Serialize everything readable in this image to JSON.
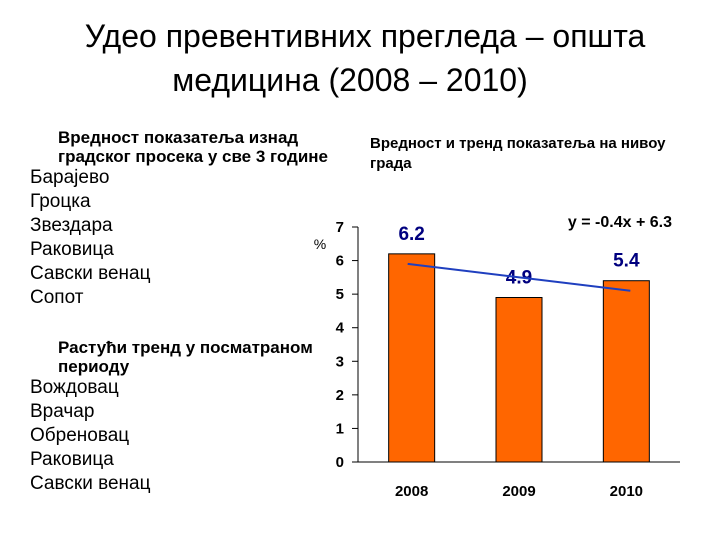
{
  "title": {
    "line1": "Удео превентивних прегледа – општа",
    "line2": "медицина (2008 – 2010)"
  },
  "left_panel": {
    "group1_heading": "Вредност показатеља изнад градског просека у све 3 године",
    "group1_items": [
      "Барајево",
      "Гроцка",
      "Звездара",
      "Раковица",
      "Савски венац",
      "Сопот"
    ],
    "group2_heading": "Растући тренд у посматраном периоду",
    "group2_items": [
      "Вождовац",
      "Врачар",
      "Обреновац",
      "Раковица",
      "Савски венац"
    ]
  },
  "right_heading": "Вредност и тренд показатеља на нивоу града",
  "chart_data": {
    "type": "bar",
    "categories": [
      "2008",
      "2009",
      "2010"
    ],
    "values": [
      6.2,
      4.9,
      5.4
    ],
    "data_labels": [
      "6.2",
      "4.9",
      "5.4"
    ],
    "ylim": [
      0,
      7
    ],
    "yticks": [
      "0",
      "1",
      "2",
      "3",
      "4",
      "5",
      "6",
      "7"
    ],
    "ylabel": "%",
    "bar_color": "#ff6600",
    "trendline": {
      "equation": "y = -0.4x + 6.3",
      "slope": -0.4,
      "intercept": 6.3,
      "color": "#1f3fbf"
    }
  }
}
